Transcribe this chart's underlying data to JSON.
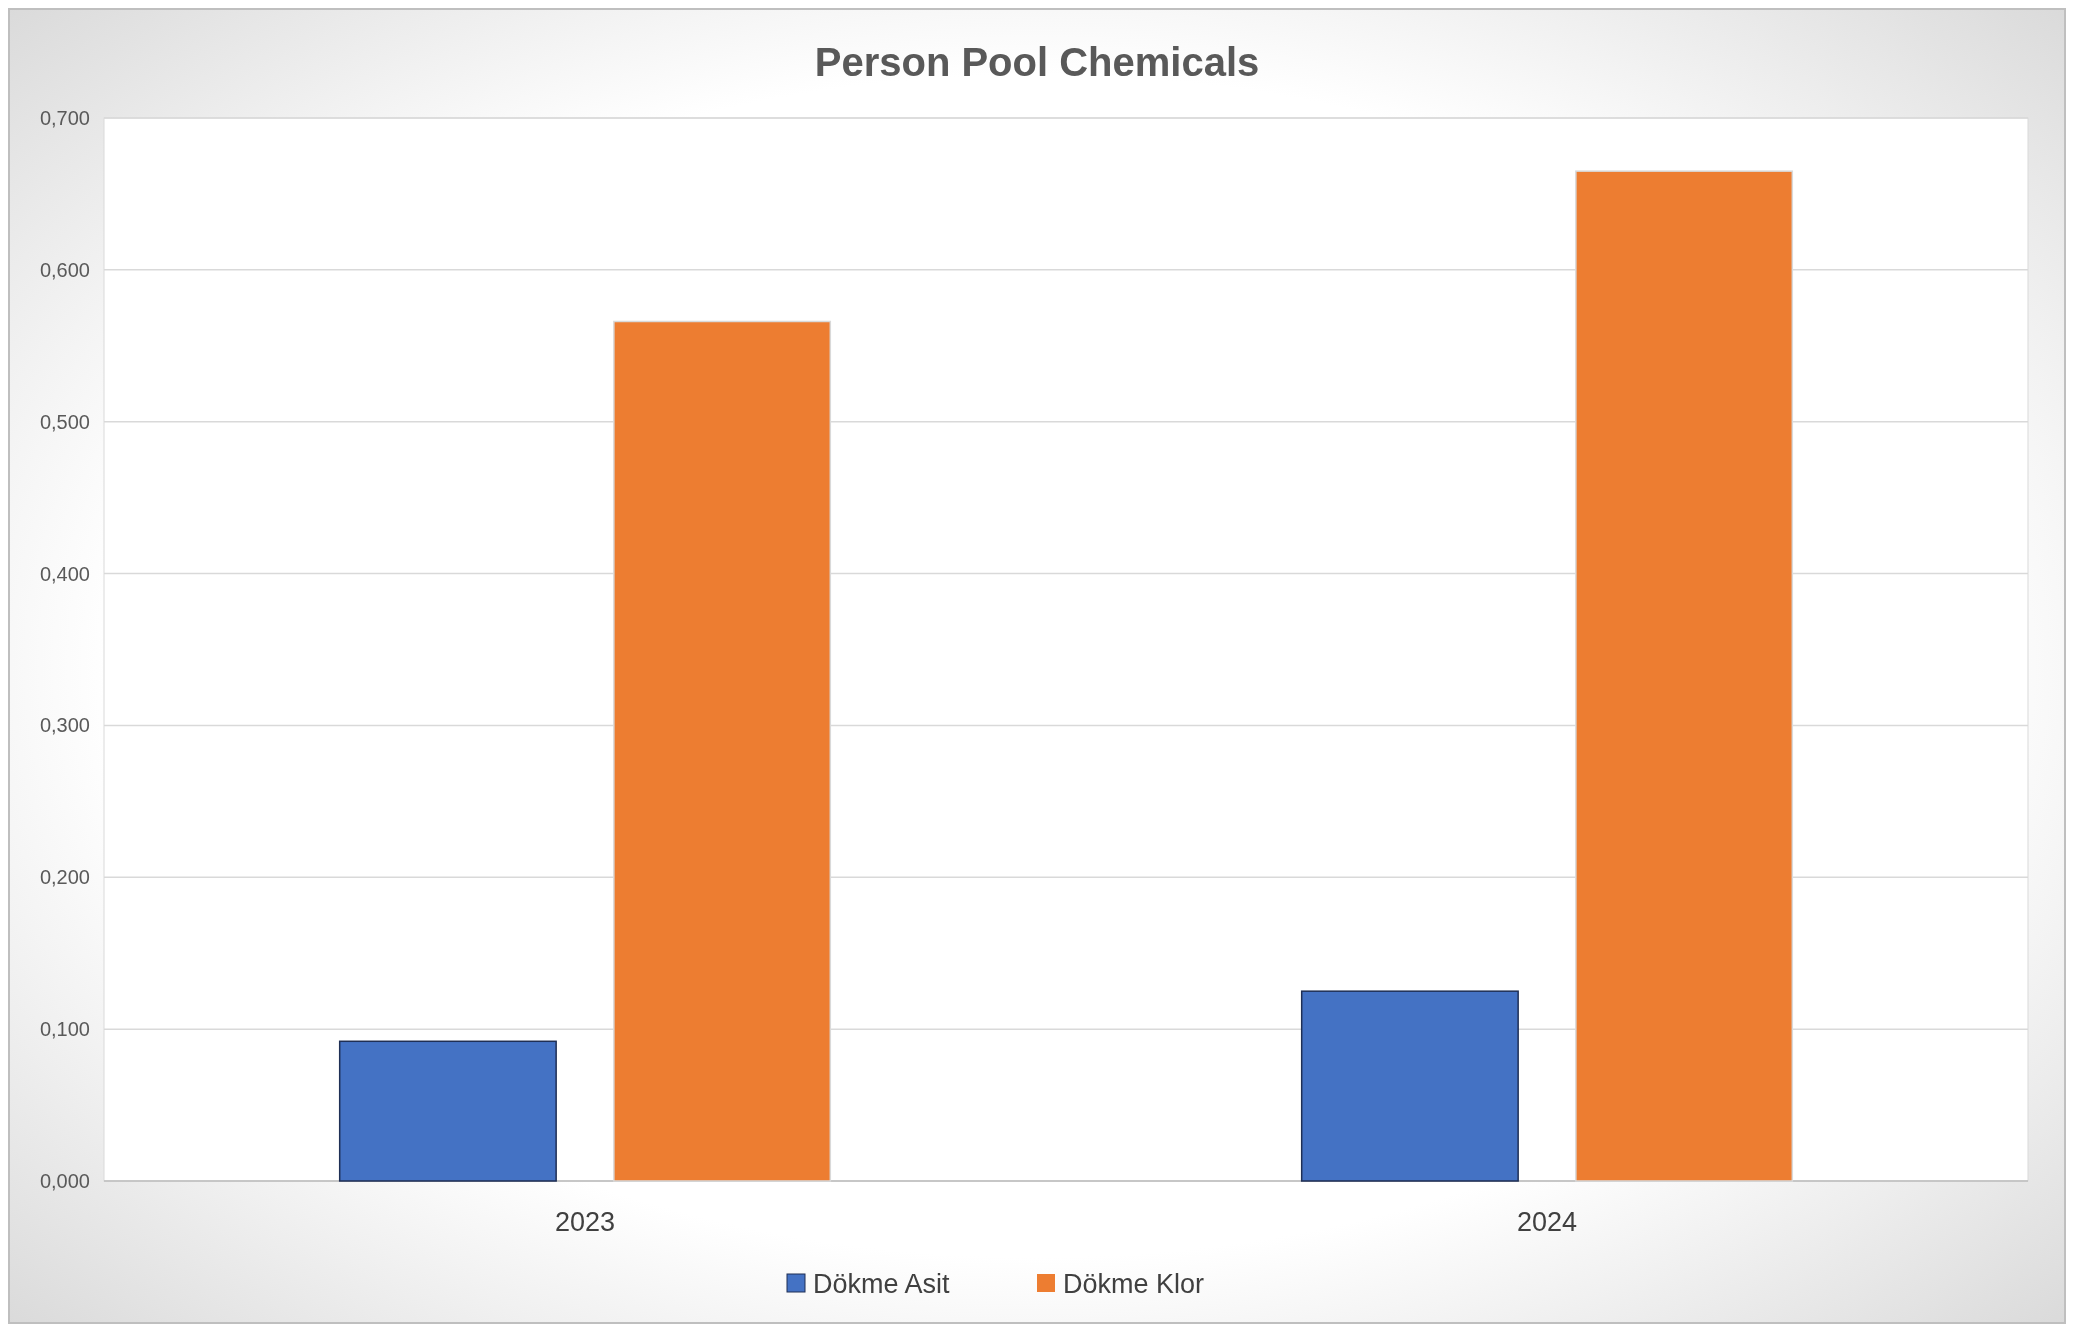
{
  "chart_data": {
    "type": "bar",
    "title": "Person Pool Chemicals",
    "categories": [
      "2023",
      "2024"
    ],
    "series": [
      {
        "name": "Dökme Asit",
        "color": "#4472c4",
        "values": [
          0.092,
          0.125
        ]
      },
      {
        "name": "Dökme Klor",
        "color": "#ed7d31",
        "values": [
          0.566,
          0.665
        ]
      }
    ],
    "ylim": [
      0,
      0.7
    ],
    "yticks": [
      {
        "value": 0,
        "label": "0,000"
      },
      {
        "value": 0.1,
        "label": "0,100"
      },
      {
        "value": 0.2,
        "label": "0,200"
      },
      {
        "value": 0.3,
        "label": "0,300"
      },
      {
        "value": 0.4,
        "label": "0,400"
      },
      {
        "value": 0.5,
        "label": "0,500"
      },
      {
        "value": 0.6,
        "label": "0,600"
      },
      {
        "value": 0.7,
        "label": "0,700"
      }
    ],
    "grid": "y",
    "legend": "bottom"
  }
}
